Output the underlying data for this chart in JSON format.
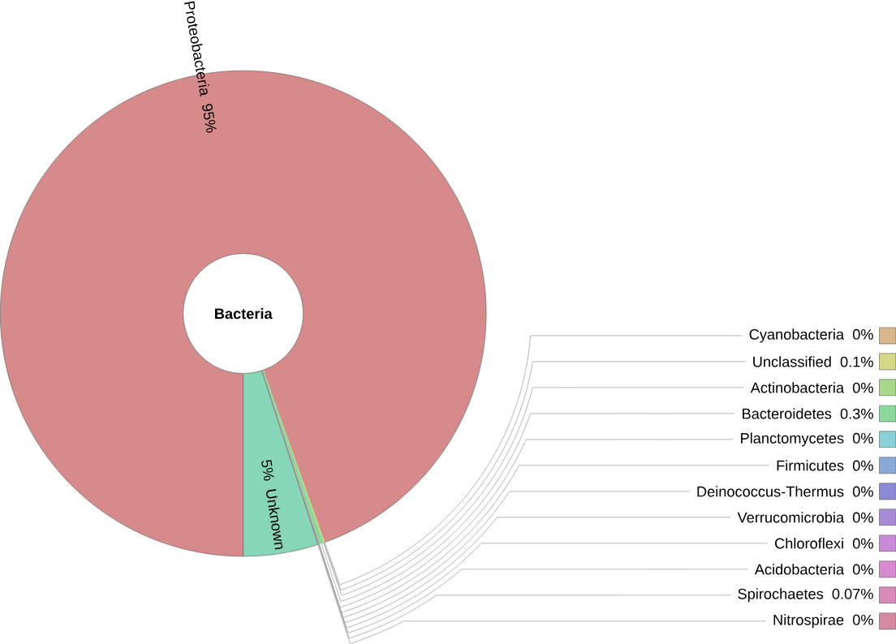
{
  "chart_data": {
    "type": "donut",
    "title": "Bacteria",
    "legend": "right",
    "categories": [
      "Proteobacteria",
      "Cyanobacteria",
      "Unclassified",
      "Actinobacteria",
      "Bacteroidetes",
      "Planctomycetes",
      "Firmicutes",
      "Deinococcus-Thermus",
      "Verrucomicrobia",
      "Chloroflexi",
      "Acidobacteria",
      "Spirochaetes",
      "Nitrospirae",
      "Unknown"
    ],
    "values": [
      95,
      0,
      0.1,
      0,
      0.3,
      0,
      0,
      0,
      0,
      0,
      0,
      0.07,
      0,
      5
    ],
    "value_labels": [
      "95%",
      "0%",
      "0.1%",
      "0%",
      "0.3%",
      "0%",
      "0%",
      "0%",
      "0%",
      "0%",
      "0%",
      "0.07%",
      "0%",
      "5%"
    ],
    "colors": [
      "#d68b8a",
      "#d8b88a",
      "#d4d98a",
      "#a8d88a",
      "#8ad89a",
      "#8ad0d6",
      "#8aaad6",
      "#8a8ad6",
      "#a88ad6",
      "#c88ad6",
      "#d88ad0",
      "#d88ab8",
      "#d68aa2",
      "#88d6b8"
    ]
  }
}
